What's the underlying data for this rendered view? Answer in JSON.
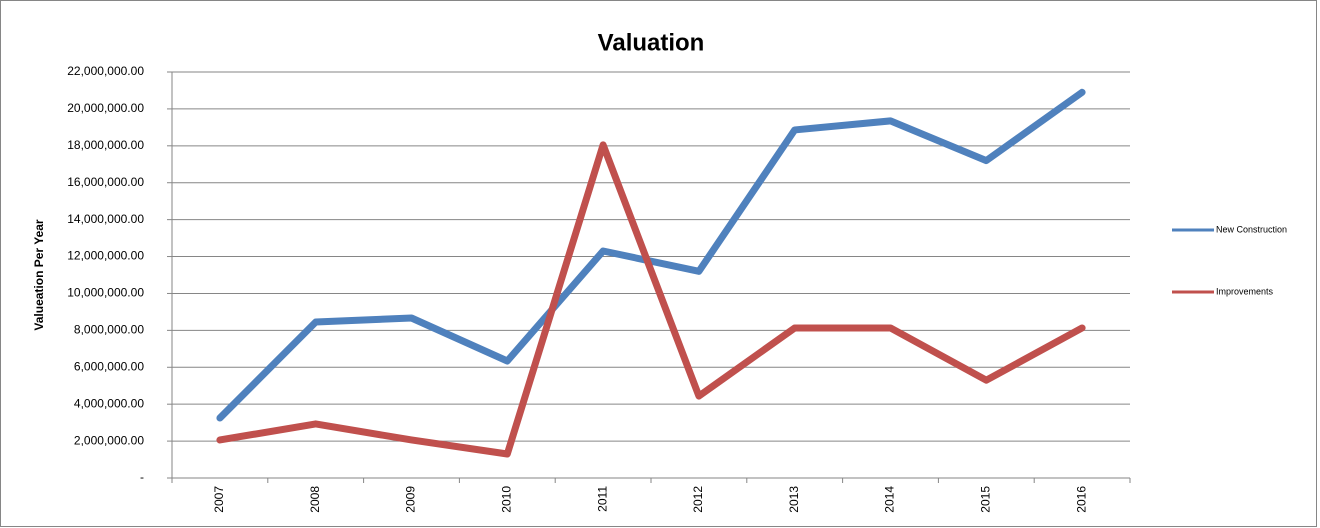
{
  "chart_data": {
    "type": "line",
    "title": "Valuation",
    "y_label": "Valueation Per Year",
    "categories": [
      "2007",
      "2008",
      "2009",
      "2010",
      "2011",
      "2012",
      "2013",
      "2014",
      "2015",
      "2016"
    ],
    "series": [
      {
        "name": "New Construction",
        "color": "#4f81bd",
        "values": [
          3250000,
          8450000,
          8670000,
          6340000,
          12300000,
          11200000,
          18860000,
          19350000,
          17200000,
          20900000
        ]
      },
      {
        "name": "Improvements",
        "color": "#c0504d",
        "values": [
          2060000,
          2930000,
          2060000,
          1300000,
          18050000,
          4440000,
          8130000,
          8130000,
          5300000,
          8130000
        ]
      }
    ],
    "ylim": [
      0,
      22000000
    ],
    "yticks": [
      {
        "value": 0,
        "label": "-"
      },
      {
        "value": 2000000,
        "label": "2,000,000.00"
      },
      {
        "value": 4000000,
        "label": "4,000,000.00"
      },
      {
        "value": 6000000,
        "label": "6,000,000.00"
      },
      {
        "value": 8000000,
        "label": "8,000,000.00"
      },
      {
        "value": 10000000,
        "label": "10,000,000.00"
      },
      {
        "value": 12000000,
        "label": "12,000,000.00"
      },
      {
        "value": 14000000,
        "label": "14,000,000.00"
      },
      {
        "value": 16000000,
        "label": "16,000,000.00"
      },
      {
        "value": 18000000,
        "label": "18,000,000.00"
      },
      {
        "value": 20000000,
        "label": "20,000,000.00"
      },
      {
        "value": 22000000,
        "label": "22,000,000.00"
      }
    ],
    "grid": true,
    "legend": "right"
  }
}
